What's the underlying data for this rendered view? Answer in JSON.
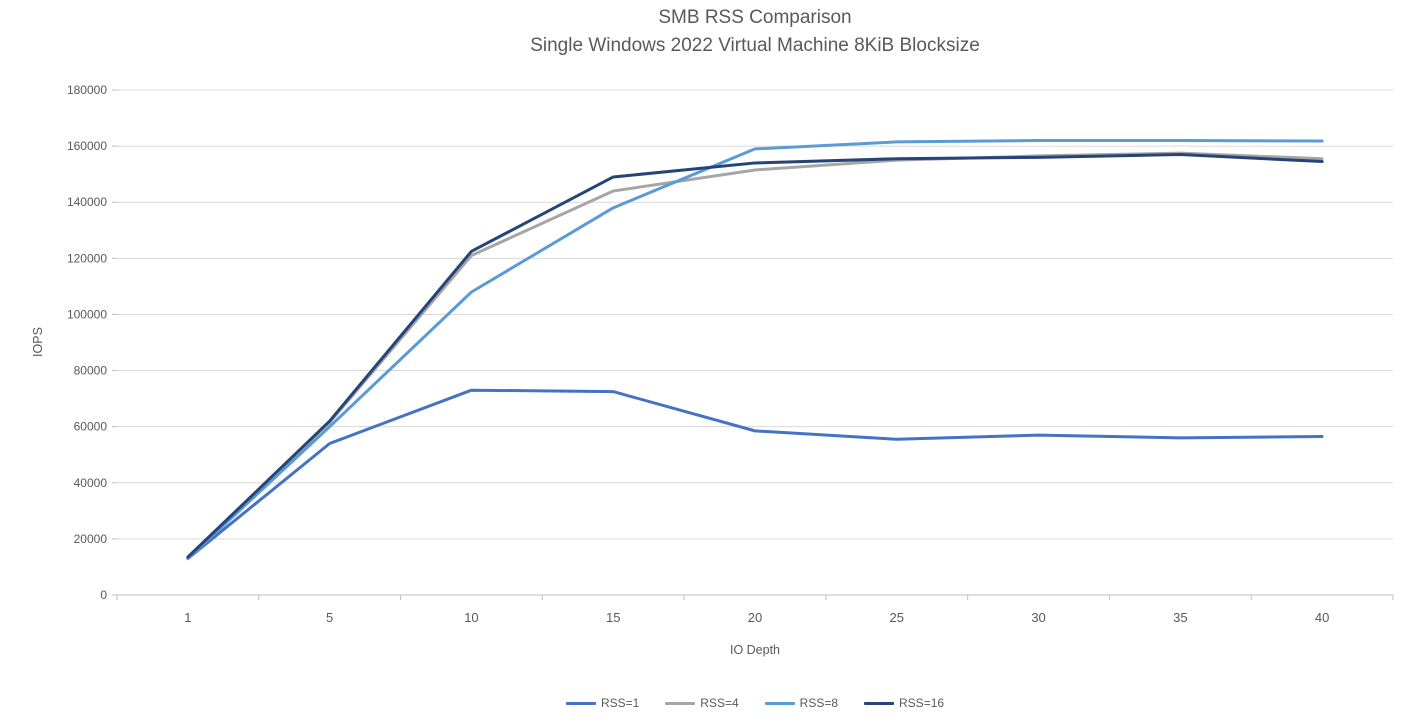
{
  "chart_data": {
    "type": "line",
    "title": "SMB RSS Comparison",
    "subtitle": "Single Windows 2022 Virtual Machine 8KiB Blocksize",
    "xlabel": "IO Depth",
    "ylabel": "IOPS",
    "categories": [
      "1",
      "5",
      "10",
      "15",
      "20",
      "25",
      "30",
      "35",
      "40"
    ],
    "ylim": [
      0,
      180000
    ],
    "yticks": [
      0,
      20000,
      40000,
      60000,
      80000,
      100000,
      120000,
      140000,
      160000,
      180000
    ],
    "grid": true,
    "legend_position": "bottom",
    "series": [
      {
        "name": "RSS=1",
        "color": "#4472C4",
        "values": [
          13000,
          54000,
          73000,
          72500,
          58500,
          55500,
          57000,
          56000,
          56500
        ]
      },
      {
        "name": "RSS=4",
        "color": "#A6A6A6",
        "values": [
          13500,
          61500,
          121000,
          144000,
          151500,
          155000,
          156500,
          157500,
          155500
        ]
      },
      {
        "name": "RSS=8",
        "color": "#5B9BD5",
        "values": [
          13000,
          60000,
          108000,
          138000,
          159000,
          161500,
          162000,
          162000,
          161800
        ]
      },
      {
        "name": "RSS=16",
        "color": "#264478",
        "values": [
          13500,
          62000,
          122500,
          149000,
          154000,
          155500,
          156000,
          157000,
          154500
        ]
      }
    ],
    "colors": {
      "gridline": "#D9D9D9",
      "axis_line": "#BFBFBF",
      "tick_label": "#595959",
      "title_text": "#595959"
    }
  }
}
